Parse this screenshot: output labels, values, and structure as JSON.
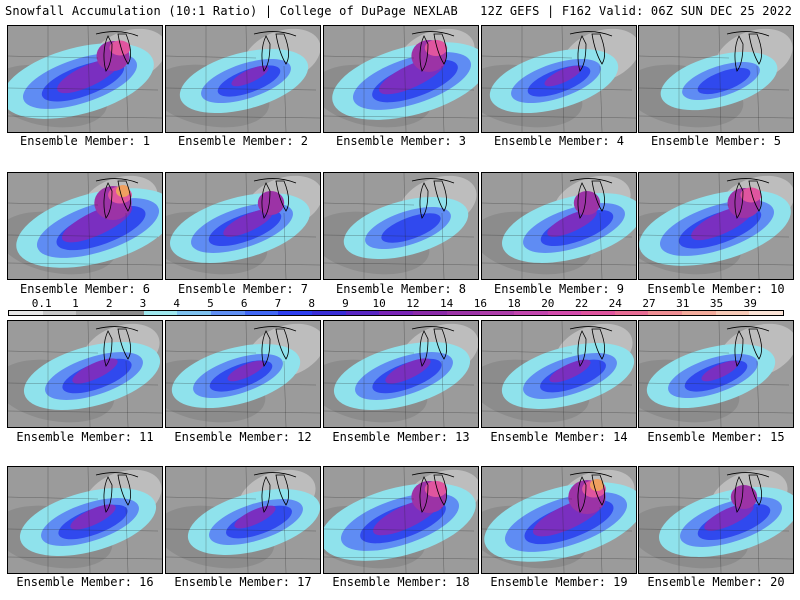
{
  "header": {
    "title": "Snowfall Accumulation (10:1 Ratio) | College of DuPage NEXLAB",
    "run_info": "12Z GEFS | F162 Valid: 06Z SUN DEC 25 2022"
  },
  "colorbar": {
    "labels": [
      "0.1",
      "1",
      "2",
      "3",
      "4",
      "5",
      "6",
      "7",
      "8",
      "9",
      "10",
      "12",
      "14",
      "16",
      "18",
      "20",
      "22",
      "24",
      "27",
      "31",
      "35",
      "39"
    ],
    "colors": [
      "#e6e6e6",
      "#c8c8c8",
      "#aaaaaa",
      "#8c8c8c",
      "#9fe8ee",
      "#7ec2f0",
      "#6090f4",
      "#4168f5",
      "#2e3ff0",
      "#3a2fd8",
      "#5a27c4",
      "#7a24b6",
      "#8b2aa8",
      "#9c33a6",
      "#ae3daa",
      "#c346ae",
      "#d44cac",
      "#e0559f",
      "#e86d95",
      "#ef8e93",
      "#f4ac9c",
      "#f8cbb8",
      "#fbe3d6"
    ]
  },
  "panels": [
    {
      "label": "Ensemble Member: 1",
      "intensity": 0.75
    },
    {
      "label": "Ensemble Member: 2",
      "intensity": 0.45
    },
    {
      "label": "Ensemble Member: 3",
      "intensity": 0.8
    },
    {
      "label": "Ensemble Member: 4",
      "intensity": 0.45
    },
    {
      "label": "Ensemble Member: 5",
      "intensity": 0.3
    },
    {
      "label": "Ensemble Member: 6",
      "intensity": 0.85
    },
    {
      "label": "Ensemble Member: 7",
      "intensity": 0.6
    },
    {
      "label": "Ensemble Member: 8",
      "intensity": 0.4
    },
    {
      "label": "Ensemble Member: 9",
      "intensity": 0.6
    },
    {
      "label": "Ensemble Member: 10",
      "intensity": 0.75
    },
    {
      "label": "Ensemble Member: 11",
      "intensity": 0.55
    },
    {
      "label": "Ensemble Member: 12",
      "intensity": 0.45
    },
    {
      "label": "Ensemble Member: 13",
      "intensity": 0.55
    },
    {
      "label": "Ensemble Member: 14",
      "intensity": 0.5
    },
    {
      "label": "Ensemble Member: 15",
      "intensity": 0.45
    },
    {
      "label": "Ensemble Member: 16",
      "intensity": 0.55
    },
    {
      "label": "Ensemble Member: 17",
      "intensity": 0.5
    },
    {
      "label": "Ensemble Member: 18",
      "intensity": 0.8
    },
    {
      "label": "Ensemble Member: 19",
      "intensity": 0.85
    },
    {
      "label": "Ensemble Member: 20",
      "intensity": 0.6
    }
  ]
}
